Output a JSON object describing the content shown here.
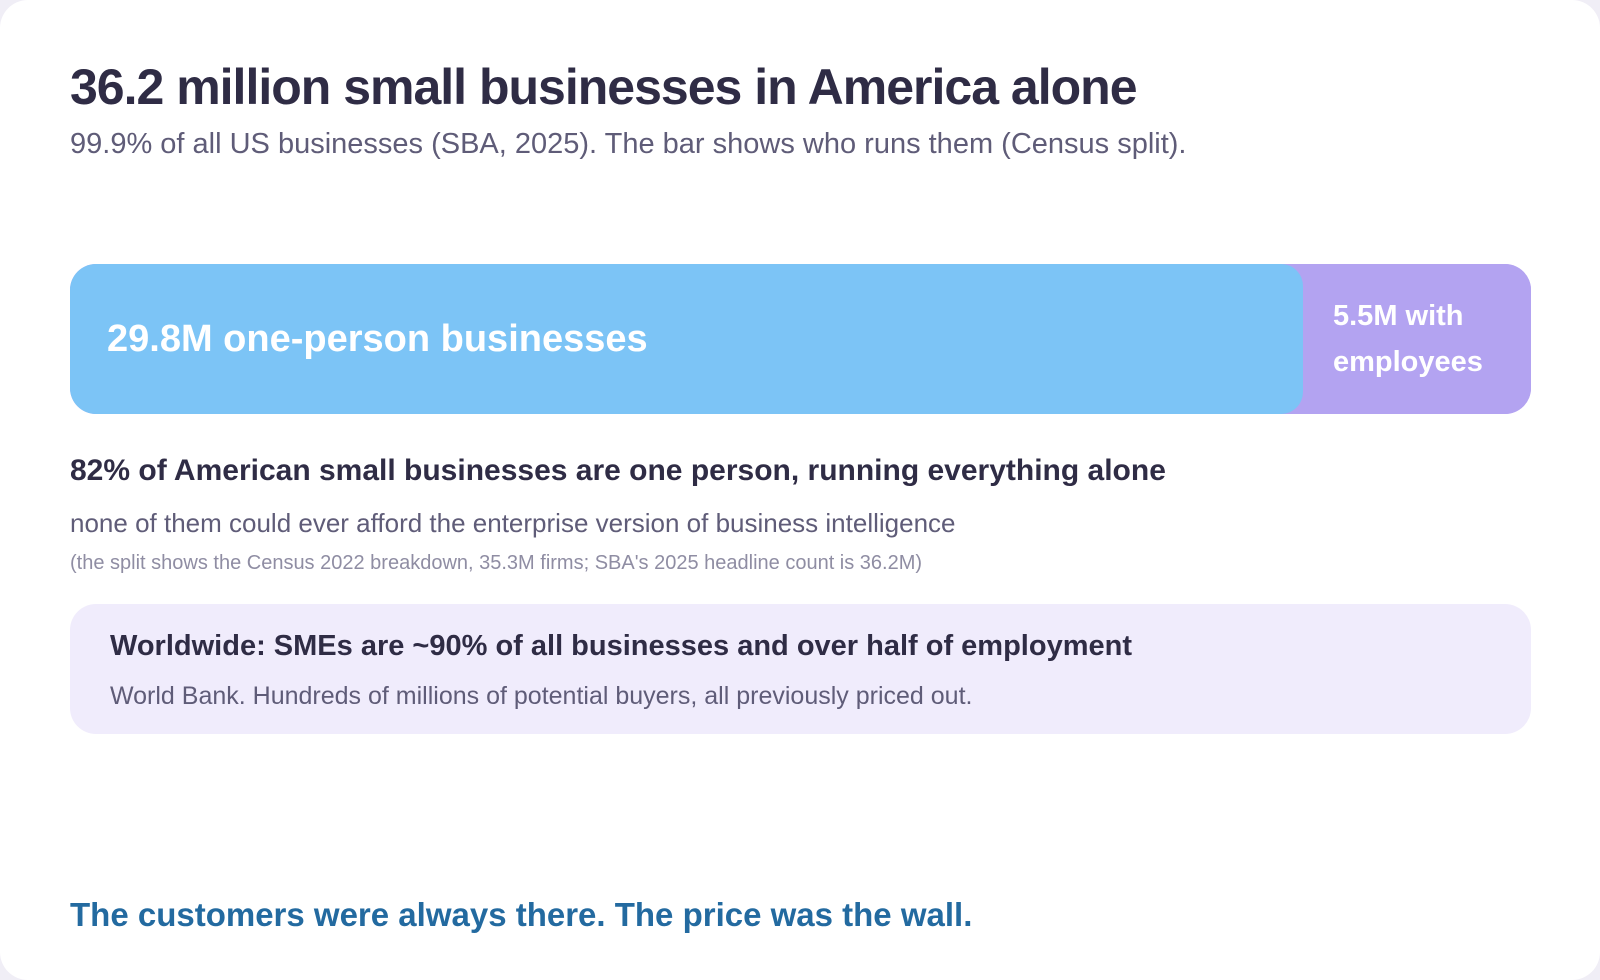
{
  "header": {
    "title": "36.2 million small businesses in America alone",
    "subtitle": "99.9% of all US businesses (SBA, 2025). The bar shows who runs them (Census split)."
  },
  "chart_data": {
    "type": "bar",
    "orientation": "horizontal-stacked",
    "series": [
      {
        "name": "one-person businesses",
        "value": 29.8,
        "unit": "M",
        "label": "29.8M one-person businesses",
        "color": "#7cc4f6"
      },
      {
        "name": "with employees",
        "value": 5.5,
        "unit": "M",
        "label": "5.5M with employees",
        "color": "#b3a3f1"
      }
    ]
  },
  "finding": {
    "headline": "82% of American small businesses are one person, running everything alone",
    "sub": "none of them could ever afford the enterprise version of business intelligence",
    "footnote": "(the split shows the Census 2022 breakdown, 35.3M firms; SBA's 2025 headline count is 36.2M)"
  },
  "callout": {
    "title": "Worldwide: SMEs are ~90% of all businesses and over half of employment",
    "body": "World Bank. Hundreds of millions of potential buyers, all previously priced out."
  },
  "closing": "The customers were always there. The price was the wall.",
  "colors": {
    "title": "#2f2c45",
    "muted": "#5f5c78",
    "footnote": "#8f8da3",
    "callout_bg": "#f0ecfc",
    "accent_text": "#236aa0"
  }
}
